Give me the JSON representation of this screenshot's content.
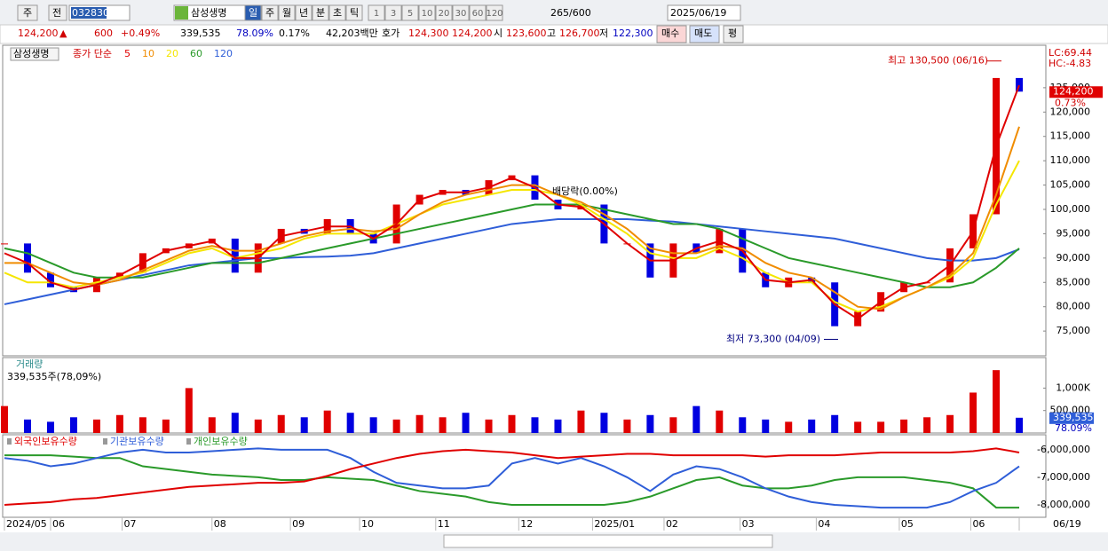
{
  "toolbar": {
    "period_unit": "주",
    "compare": "전",
    "code": "032830",
    "name": "삼성생명",
    "periods": [
      "일",
      "주",
      "월",
      "년",
      "분",
      "초",
      "틱"
    ],
    "intervals": [
      "1",
      "3",
      "5",
      "10",
      "20",
      "30",
      "60",
      "120"
    ],
    "count": "265",
    "max": "/600",
    "date": "2025/06/19"
  },
  "quote": {
    "price": "124,200",
    "arrow": "▲",
    "change": "600",
    "change_pct": "+0.49%",
    "volume": "339,535",
    "volume_pct": "78.09%",
    "turnover": "0.17%",
    "amount": "42,203백만",
    "ask_label": "호가",
    "ask": "124,300",
    "bid": "124,200",
    "open_label": "시",
    "open": "123,600",
    "high_label": "고",
    "high": "126,700",
    "low_label": "저",
    "low": "122,300",
    "buy": "매수",
    "sell": "매도",
    "avg": "평"
  },
  "chart_data": [
    {
      "type": "line",
      "name": "삼성생명",
      "legend_title": "종가 단순",
      "ylim": [
        70100,
        133000
      ],
      "yticks": [
        {
          "value": 75000,
          "label": "75,000"
        },
        {
          "value": 80000,
          "label": "80,000"
        },
        {
          "value": 85000,
          "label": "85,000"
        },
        {
          "value": 90000,
          "label": "90,000"
        },
        {
          "value": 95000,
          "label": "95,000"
        },
        {
          "value": 100000,
          "label": "100,000"
        },
        {
          "value": 105000,
          "label": "105,000"
        },
        {
          "value": 110000,
          "label": "110,000"
        },
        {
          "value": 115000,
          "label": "115,000"
        },
        {
          "value": 120000,
          "label": "120,000"
        },
        {
          "value": 125000,
          "label": "125,000"
        }
      ],
      "xlim": [
        0,
        44
      ],
      "xticks": [
        {
          "value": 0,
          "label": "2024/05"
        },
        {
          "value": 2,
          "label": "06"
        },
        {
          "value": 5.1,
          "label": "07"
        },
        {
          "value": 9,
          "label": "08"
        },
        {
          "value": 12.4,
          "label": "09"
        },
        {
          "value": 15.4,
          "label": "10"
        },
        {
          "value": 18.7,
          "label": "11"
        },
        {
          "value": 22.3,
          "label": "12"
        },
        {
          "value": 25.5,
          "label": "2025/01"
        },
        {
          "value": 28.6,
          "label": "02"
        },
        {
          "value": 31.9,
          "label": "03"
        },
        {
          "value": 35.2,
          "label": "04"
        },
        {
          "value": 38.8,
          "label": "05"
        },
        {
          "value": 41.9,
          "label": "06"
        },
        {
          "value": 44,
          "label": "06/19"
        }
      ],
      "price": {
        "values": [
          93000,
          87000,
          84000,
          83000,
          86000,
          87000,
          91000,
          92000,
          93000,
          94000,
          87000,
          93000,
          96000,
          95000,
          98000,
          95000,
          93000,
          101000,
          103000,
          104000,
          103000,
          106000,
          107000,
          102000,
          100000,
          101000,
          93000,
          93000,
          86000,
          93000,
          91000,
          96000,
          87000,
          84000,
          86000,
          85000,
          76000,
          79000,
          83000,
          85000,
          85000,
          92000,
          99000,
          127000,
          124200
        ],
        "up_color": "#e00000",
        "down_color": "#0000e0"
      },
      "series": [
        {
          "name": "5",
          "color": "#e00000",
          "values": [
            91000,
            89000,
            85000,
            83500,
            84500,
            86500,
            89000,
            91500,
            92500,
            93500,
            90000,
            90000,
            94500,
            95500,
            96500,
            96500,
            94000,
            97000,
            102000,
            103500,
            103500,
            104500,
            106500,
            104500,
            101000,
            100500,
            97000,
            93000,
            89500,
            89500,
            92000,
            93500,
            91500,
            85500,
            85000,
            85500,
            80500,
            77500,
            81000,
            84000,
            85000,
            88500,
            95500,
            113000,
            125500
          ]
        },
        {
          "name": "10",
          "color": "#f08c00",
          "values": [
            89000,
            89000,
            87000,
            85000,
            84500,
            85500,
            87500,
            89500,
            91500,
            92500,
            91500,
            91500,
            93000,
            94500,
            95500,
            96000,
            95500,
            96000,
            99000,
            101500,
            103000,
            104000,
            105000,
            105000,
            103000,
            101500,
            99000,
            96000,
            92000,
            91000,
            91000,
            92500,
            92000,
            89000,
            87000,
            86000,
            83000,
            80000,
            79500,
            82000,
            84000,
            86500,
            91000,
            103000,
            117000
          ]
        },
        {
          "name": "20",
          "color": "#f5e600",
          "values": [
            87000,
            85000,
            85000,
            84000,
            85000,
            86000,
            87000,
            89000,
            91000,
            92000,
            90000,
            91000,
            92000,
            94000,
            95000,
            95000,
            95000,
            97000,
            99000,
            101000,
            102000,
            103000,
            104000,
            104000,
            103000,
            101000,
            98000,
            95000,
            91000,
            90000,
            90000,
            92000,
            90000,
            87000,
            85000,
            85000,
            81000,
            79000,
            80000,
            82000,
            84000,
            86000,
            90000,
            101000,
            110000
          ]
        },
        {
          "name": "60",
          "color": "#2a9a2a",
          "values": [
            92000,
            91000,
            89000,
            87000,
            86000,
            86000,
            86000,
            87000,
            88000,
            89000,
            89000,
            89000,
            90000,
            91000,
            92000,
            93000,
            94000,
            95000,
            96000,
            97000,
            98000,
            99000,
            100000,
            101000,
            101000,
            101000,
            100000,
            99000,
            98000,
            97000,
            97000,
            96000,
            94000,
            92000,
            90000,
            89000,
            88000,
            87000,
            86000,
            85000,
            84000,
            84000,
            85000,
            88000,
            92000
          ]
        },
        {
          "name": "120",
          "color": "#2f5ed8",
          "values": [
            80500,
            81500,
            82500,
            83500,
            84500,
            85500,
            86500,
            87500,
            88500,
            89000,
            89500,
            90000,
            90000,
            90200,
            90300,
            90500,
            91000,
            92000,
            93000,
            94000,
            95000,
            96000,
            97000,
            97500,
            98000,
            98000,
            98000,
            98000,
            97700,
            97500,
            97000,
            96500,
            96000,
            95500,
            95000,
            94500,
            94000,
            93000,
            92000,
            91000,
            90000,
            89500,
            89500,
            90000,
            91800
          ]
        }
      ],
      "right_labels": [
        "LC:69.44",
        "HC:-4.83"
      ],
      "last_label": "124,200",
      "last_value": 124200,
      "last_pct": "0.73%",
      "annotations": {
        "high": "최고 130,500 (06/16)",
        "high_value": 130500,
        "low": "최저 73,300 (04/09)",
        "low_value": 73300,
        "dividend": "배당락(0.00%)"
      }
    },
    {
      "type": "bar",
      "title": "거래량",
      "subtitle": "339,535주(78,09%)",
      "ylim": [
        0,
        1660000
      ],
      "yticks": [
        {
          "value": 500000,
          "label": "500,000"
        },
        {
          "value": 1000000,
          "label": "1,000K"
        }
      ],
      "values": [
        600000,
        300000,
        250000,
        350000,
        300000,
        400000,
        350000,
        300000,
        1000000,
        350000,
        450000,
        300000,
        400000,
        350000,
        500000,
        450000,
        350000,
        300000,
        400000,
        350000,
        450000,
        300000,
        400000,
        350000,
        300000,
        500000,
        450000,
        300000,
        400000,
        350000,
        600000,
        500000,
        350000,
        300000,
        250000,
        300000,
        400000,
        250000,
        250000,
        300000,
        350000,
        400000,
        900000,
        1400000,
        339535
      ],
      "last_label": "339,535",
      "last_pct": "78.09%"
    },
    {
      "type": "line",
      "ylim": [
        -8420000,
        -5520000
      ],
      "yticks": [
        {
          "value": -8000000,
          "label": "-8,000,000"
        },
        {
          "value": -7000000,
          "label": "-7,000,000"
        },
        {
          "value": -6000000,
          "label": "-6,000,000"
        }
      ],
      "series": [
        {
          "name": "외국인보유수량",
          "color": "#e00000",
          "values": [
            -8000000,
            -7950000,
            -7900000,
            -7800000,
            -7750000,
            -7650000,
            -7550000,
            -7450000,
            -7350000,
            -7300000,
            -7250000,
            -7200000,
            -7200000,
            -7150000,
            -6950000,
            -6700000,
            -6500000,
            -6300000,
            -6150000,
            -6050000,
            -6000000,
            -6050000,
            -6100000,
            -6200000,
            -6300000,
            -6250000,
            -6200000,
            -6150000,
            -6150000,
            -6200000,
            -6200000,
            -6200000,
            -6200000,
            -6250000,
            -6200000,
            -6200000,
            -6200000,
            -6150000,
            -6100000,
            -6100000,
            -6100000,
            -6100000,
            -6050000,
            -5950000,
            -6100000
          ]
        },
        {
          "name": "기관보유수량",
          "color": "#2f5ed8",
          "values": [
            -6300000,
            -6400000,
            -6600000,
            -6500000,
            -6300000,
            -6100000,
            -6000000,
            -6100000,
            -6100000,
            -6050000,
            -6000000,
            -5950000,
            -6000000,
            -6000000,
            -6000000,
            -6300000,
            -6800000,
            -7200000,
            -7300000,
            -7400000,
            -7400000,
            -7300000,
            -6500000,
            -6300000,
            -6500000,
            -6300000,
            -6600000,
            -7000000,
            -7500000,
            -6900000,
            -6600000,
            -6700000,
            -7000000,
            -7400000,
            -7700000,
            -7900000,
            -8000000,
            -8050000,
            -8100000,
            -8100000,
            -8100000,
            -7900000,
            -7500000,
            -7200000,
            -6600000
          ]
        },
        {
          "name": "개인보유수량",
          "color": "#2a9a2a",
          "values": [
            -6200000,
            -6200000,
            -6200000,
            -6250000,
            -6300000,
            -6300000,
            -6600000,
            -6700000,
            -6800000,
            -6900000,
            -6950000,
            -7000000,
            -7100000,
            -7100000,
            -7000000,
            -7050000,
            -7100000,
            -7300000,
            -7500000,
            -7600000,
            -7700000,
            -7900000,
            -8000000,
            -8000000,
            -8000000,
            -8000000,
            -8000000,
            -7900000,
            -7700000,
            -7400000,
            -7100000,
            -7000000,
            -7300000,
            -7400000,
            -7400000,
            -7300000,
            -7100000,
            -7000000,
            -7000000,
            -7000000,
            -7100000,
            -7200000,
            -7400000,
            -8100000,
            -8100000
          ]
        }
      ]
    }
  ]
}
